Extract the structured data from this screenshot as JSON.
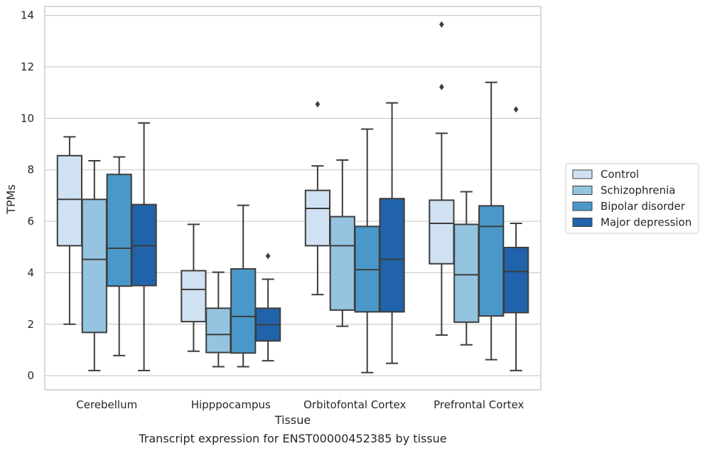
{
  "chart_data": {
    "type": "box",
    "caption": "Transcript expression for ENST00000452385 by tissue",
    "xlabel": "Tissue",
    "ylabel": "TPMs",
    "ylim": [
      -0.55,
      14.35
    ],
    "yticks": [
      0,
      2,
      4,
      6,
      8,
      10,
      12,
      14
    ],
    "grid": true,
    "legend_position": "right",
    "categories": [
      "Cerebellum",
      "Hipppocampus",
      "Orbitofontal Cortex",
      "Prefrontal Cortex"
    ],
    "series": [
      {
        "name": "Control",
        "color": "#d0e1f2",
        "boxes": [
          {
            "whislo": 2.0,
            "q1": 5.05,
            "med": 6.85,
            "q3": 8.55,
            "whishi": 9.28,
            "fliers": []
          },
          {
            "whislo": 0.95,
            "q1": 2.1,
            "med": 3.35,
            "q3": 4.08,
            "whishi": 5.88,
            "fliers": []
          },
          {
            "whislo": 3.15,
            "q1": 5.05,
            "med": 6.5,
            "q3": 7.2,
            "whishi": 8.15,
            "fliers": [
              10.55
            ]
          },
          {
            "whislo": 1.58,
            "q1": 4.35,
            "med": 5.92,
            "q3": 6.82,
            "whishi": 9.42,
            "fliers": [
              11.22,
              13.65
            ]
          }
        ]
      },
      {
        "name": "Schizophrenia",
        "color": "#94c4df",
        "boxes": [
          {
            "whislo": 0.2,
            "q1": 1.68,
            "med": 4.52,
            "q3": 6.85,
            "whishi": 8.35,
            "fliers": []
          },
          {
            "whislo": 0.35,
            "q1": 0.9,
            "med": 1.6,
            "q3": 2.62,
            "whishi": 4.02,
            "fliers": []
          },
          {
            "whislo": 1.92,
            "q1": 2.55,
            "med": 5.05,
            "q3": 6.18,
            "whishi": 8.38,
            "fliers": []
          },
          {
            "whislo": 1.2,
            "q1": 2.08,
            "med": 3.92,
            "q3": 5.88,
            "whishi": 7.15,
            "fliers": []
          }
        ]
      },
      {
        "name": "Bipolar disorder",
        "color": "#4a98c9",
        "boxes": [
          {
            "whislo": 0.78,
            "q1": 3.48,
            "med": 4.95,
            "q3": 7.82,
            "whishi": 8.5,
            "fliers": []
          },
          {
            "whislo": 0.35,
            "q1": 0.88,
            "med": 2.3,
            "q3": 4.15,
            "whishi": 6.62,
            "fliers": []
          },
          {
            "whislo": 0.12,
            "q1": 2.48,
            "med": 4.12,
            "q3": 5.8,
            "whishi": 9.58,
            "fliers": []
          },
          {
            "whislo": 0.62,
            "q1": 2.32,
            "med": 5.8,
            "q3": 6.6,
            "whishi": 11.4,
            "fliers": []
          }
        ]
      },
      {
        "name": "Major depression",
        "color": "#2163aa",
        "boxes": [
          {
            "whislo": 0.2,
            "q1": 3.5,
            "med": 5.05,
            "q3": 6.65,
            "whishi": 9.82,
            "fliers": []
          },
          {
            "whislo": 0.58,
            "q1": 1.35,
            "med": 1.98,
            "q3": 2.62,
            "whishi": 3.75,
            "fliers": [
              4.65
            ]
          },
          {
            "whislo": 0.48,
            "q1": 2.48,
            "med": 4.52,
            "q3": 6.88,
            "whishi": 10.6,
            "fliers": []
          },
          {
            "whislo": 0.2,
            "q1": 2.45,
            "med": 4.05,
            "q3": 4.98,
            "whishi": 5.92,
            "fliers": [
              10.35
            ]
          }
        ]
      }
    ]
  }
}
